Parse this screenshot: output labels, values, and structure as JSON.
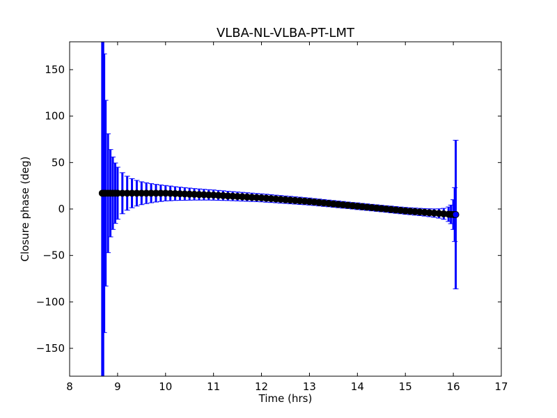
{
  "chart_data": {
    "type": "scatter",
    "title": "VLBA-NL-VLBA-PT-LMT",
    "xlabel": "Time (hrs)",
    "ylabel": "Closure phase (deg)",
    "xlim": [
      8,
      17
    ],
    "ylim": [
      -180,
      180
    ],
    "xticks": [
      8,
      9,
      10,
      11,
      12,
      13,
      14,
      15,
      16,
      17
    ],
    "yticks": [
      -150,
      -100,
      -50,
      0,
      50,
      100,
      150
    ],
    "ytick_labels": [
      "−150",
      "−100",
      "−50",
      "0",
      "50",
      "100",
      "150"
    ],
    "grid": false,
    "series": [
      {
        "name": "closure phase",
        "marker_color": "#000000",
        "errorbar_color": "#0000ff",
        "x": [
          8.68,
          8.7,
          8.72,
          8.75,
          8.8,
          8.85,
          8.9,
          8.95,
          9.0,
          9.1,
          9.2,
          9.3,
          9.4,
          9.5,
          9.6,
          9.7,
          9.8,
          9.9,
          10.0,
          10.1,
          10.2,
          10.3,
          10.4,
          10.5,
          10.6,
          10.7,
          10.8,
          10.9,
          11.0,
          11.1,
          11.2,
          11.3,
          11.4,
          11.5,
          11.6,
          11.7,
          11.8,
          11.9,
          12.0,
          12.1,
          12.2,
          12.3,
          12.4,
          12.5,
          12.6,
          12.7,
          12.8,
          12.9,
          13.0,
          13.1,
          13.2,
          13.3,
          13.4,
          13.5,
          13.6,
          13.7,
          13.8,
          13.9,
          14.0,
          14.1,
          14.2,
          14.3,
          14.4,
          14.5,
          14.6,
          14.7,
          14.8,
          14.9,
          15.0,
          15.1,
          15.2,
          15.3,
          15.4,
          15.5,
          15.6,
          15.7,
          15.8,
          15.9,
          15.95,
          16.0,
          16.03,
          16.05
        ],
        "y": [
          17,
          17,
          17,
          17,
          17,
          17,
          17,
          17,
          17,
          17,
          17,
          17,
          17,
          17,
          17,
          17,
          17,
          17,
          17,
          16.8,
          16.6,
          16.4,
          16.2,
          16,
          15.8,
          15.6,
          15.4,
          15.2,
          15,
          14.7,
          14.4,
          14.1,
          13.8,
          13.5,
          13.2,
          12.9,
          12.6,
          12.3,
          12,
          11.6,
          11.2,
          10.8,
          10.4,
          10,
          9.6,
          9.2,
          8.8,
          8.4,
          8,
          7.5,
          7,
          6.5,
          6,
          5.5,
          5,
          4.5,
          4,
          3.5,
          3,
          2.5,
          2,
          1.5,
          1,
          0.5,
          0,
          -0.5,
          -1,
          -1.5,
          -2,
          -2.4,
          -2.8,
          -3.2,
          -3.6,
          -4,
          -4.4,
          -4.8,
          -5.2,
          -5.6,
          -5.8,
          -6,
          -6,
          -6
        ],
        "yerr": [
          450,
          225,
          150,
          100,
          64,
          47,
          39,
          32.5,
          28,
          22.1,
          18.3,
          15.7,
          13.8,
          12.3,
          11.2,
          10.3,
          9.5,
          8.9,
          8.3,
          7.9,
          7.4,
          7.1,
          6.8,
          6.5,
          6.2,
          6.0,
          5.8,
          5.6,
          5.5,
          5.3,
          5.2,
          5.0,
          4.9,
          4.8,
          4.7,
          4.6,
          4.5,
          4.4,
          4.3,
          4.3,
          4.2,
          4.1,
          4.1,
          4.0,
          4.0,
          3.9,
          3.9,
          3.8,
          3.8,
          3.7,
          3.7,
          3.7,
          3.6,
          3.6,
          3.6,
          3.6,
          3.5,
          3.5,
          3.6,
          3.5,
          3.5,
          3.5,
          3.5,
          3.5,
          3.5,
          3.6,
          3.6,
          3.6,
          3.7,
          3.7,
          3.8,
          3.9,
          4.0,
          4.25,
          4.5,
          5.0,
          5.9,
          7.8,
          10,
          16,
          29,
          80
        ]
      }
    ]
  }
}
